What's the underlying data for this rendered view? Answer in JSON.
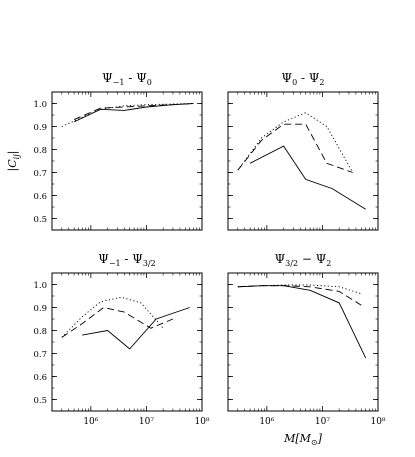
{
  "figure": {
    "ylabel": "|C_ij|",
    "xlabel": "M[M_⊙]"
  },
  "chart_data": [
    {
      "type": "line",
      "title": "Ψ₋₁ - Ψ₀",
      "title_parts": {
        "a": "Ψ",
        "a_sub": "−1",
        "sep": " - ",
        "b": "Ψ",
        "b_sub": "0"
      },
      "xscale": "log",
      "xlim": [
        200000,
        100000000
      ],
      "ylim": [
        0.45,
        1.05
      ],
      "yticks": [
        0.5,
        0.6,
        0.7,
        0.8,
        0.9,
        1.0
      ],
      "ytick_labels": [
        "0.5",
        "0.6",
        "0.7",
        "0.8",
        "0.9",
        "1.0"
      ],
      "xticks": [
        1000000,
        10000000,
        100000000
      ],
      "xtick_labels_shown": false,
      "series": [
        {
          "style": "solid",
          "x": [
            500000,
            1500000,
            4000000,
            10000000,
            30000000,
            70000000
          ],
          "y": [
            0.92,
            0.975,
            0.97,
            0.985,
            0.995,
            1.0
          ]
        },
        {
          "style": "dashed",
          "x": [
            500000,
            1500000,
            4000000,
            10000000,
            30000000,
            70000000
          ],
          "y": [
            0.93,
            0.98,
            0.985,
            0.99,
            0.995,
            1.0
          ]
        },
        {
          "style": "dotted",
          "x": [
            300000,
            700000,
            1500000,
            4000000,
            10000000,
            30000000,
            70000000
          ],
          "y": [
            0.9,
            0.94,
            0.975,
            0.99,
            0.995,
            0.998,
            1.0
          ]
        }
      ]
    },
    {
      "type": "line",
      "title": "Ψ₀ - Ψ₂",
      "title_parts": {
        "a": "Ψ",
        "a_sub": "0",
        "sep": " - ",
        "b": "Ψ",
        "b_sub": "2"
      },
      "xscale": "log",
      "xlim": [
        200000,
        100000000
      ],
      "ylim": [
        0.45,
        1.05
      ],
      "yticks": [
        0.5,
        0.6,
        0.7,
        0.8,
        0.9,
        1.0
      ],
      "ytick_labels_shown": false,
      "xticks": [
        1000000,
        10000000,
        100000000
      ],
      "xtick_labels_shown": false,
      "series": [
        {
          "style": "solid",
          "x": [
            500000,
            2000000,
            5000000,
            15000000,
            60000000
          ],
          "y": [
            0.74,
            0.815,
            0.67,
            0.63,
            0.54
          ]
        },
        {
          "style": "dashed",
          "x": [
            300000,
            800000,
            2000000,
            5000000,
            12000000,
            35000000
          ],
          "y": [
            0.71,
            0.84,
            0.91,
            0.91,
            0.74,
            0.7
          ]
        },
        {
          "style": "dotted",
          "x": [
            300000,
            800000,
            2000000,
            5000000,
            12000000,
            35000000
          ],
          "y": [
            0.71,
            0.85,
            0.92,
            0.96,
            0.9,
            0.7
          ]
        }
      ]
    },
    {
      "type": "line",
      "title": "Ψ₋₁ - Ψ₃/₂",
      "title_parts": {
        "a": "Ψ",
        "a_sub": "−1",
        "sep": " - ",
        "b": "Ψ",
        "b_sub": "3/2"
      },
      "xscale": "log",
      "xlim": [
        200000,
        100000000
      ],
      "ylim": [
        0.45,
        1.05
      ],
      "yticks": [
        0.5,
        0.6,
        0.7,
        0.8,
        0.9,
        1.0
      ],
      "ytick_labels": [
        "0.5",
        "0.6",
        "0.7",
        "0.8",
        "0.9",
        "1.0"
      ],
      "xticks": [
        1000000,
        10000000,
        100000000
      ],
      "xtick_labels": [
        "10⁶",
        "10⁷",
        "10⁸"
      ],
      "series": [
        {
          "style": "solid",
          "x": [
            700000,
            2000000,
            5000000,
            15000000,
            60000000
          ],
          "y": [
            0.78,
            0.8,
            0.72,
            0.85,
            0.9
          ]
        },
        {
          "style": "dashed",
          "x": [
            300000,
            700000,
            1700000,
            4000000,
            12000000,
            30000000
          ],
          "y": [
            0.77,
            0.83,
            0.9,
            0.88,
            0.81,
            0.85
          ]
        },
        {
          "style": "dotted",
          "x": [
            300000,
            700000,
            1500000,
            3500000,
            8000000,
            20000000
          ],
          "y": [
            0.77,
            0.86,
            0.925,
            0.945,
            0.92,
            0.81
          ]
        }
      ]
    },
    {
      "type": "line",
      "title": "Ψ₃/₂ − Ψ₂",
      "title_parts": {
        "a": "Ψ",
        "a_sub": "3/2",
        "sep": " − ",
        "b": "Ψ",
        "b_sub": "2"
      },
      "xscale": "log",
      "xlim": [
        200000,
        100000000
      ],
      "ylim": [
        0.45,
        1.05
      ],
      "yticks": [
        0.5,
        0.6,
        0.7,
        0.8,
        0.9,
        1.0
      ],
      "ytick_labels_shown": false,
      "xticks": [
        1000000,
        10000000,
        100000000
      ],
      "xtick_labels": [
        "10⁶",
        "10⁷",
        "10⁸"
      ],
      "series": [
        {
          "style": "solid",
          "x": [
            300000,
            800000,
            2000000,
            6000000,
            20000000,
            60000000
          ],
          "y": [
            0.99,
            0.995,
            0.995,
            0.975,
            0.92,
            0.68
          ]
        },
        {
          "style": "dashed",
          "x": [
            300000,
            800000,
            2000000,
            6000000,
            20000000,
            50000000
          ],
          "y": [
            0.99,
            0.995,
            0.995,
            0.99,
            0.97,
            0.91
          ]
        },
        {
          "style": "dotted",
          "x": [
            300000,
            800000,
            2000000,
            6000000,
            20000000,
            50000000
          ],
          "y": [
            0.99,
            0.995,
            0.998,
            0.998,
            0.99,
            0.96
          ]
        }
      ]
    }
  ]
}
